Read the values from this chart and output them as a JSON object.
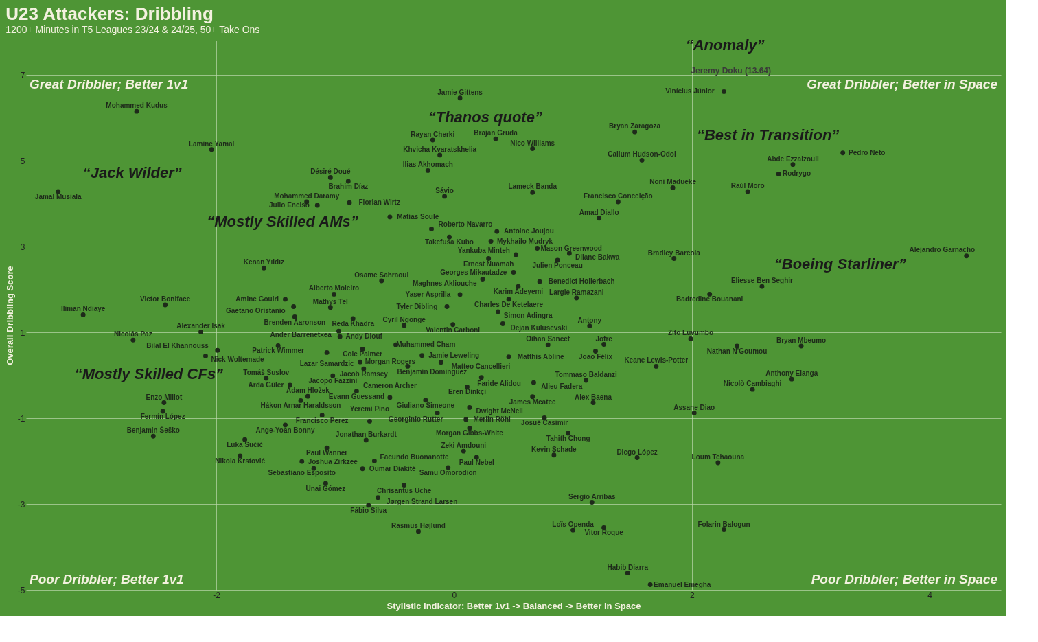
{
  "chart_data": {
    "type": "scatter",
    "title": "U23 Attackers: Dribbling",
    "subtitle": "1200+ Minutes in T5 Leagues 23/24 & 24/25, 50+ Take Ons",
    "xlabel": "Stylistic Indicator: Better 1v1 -> Balanced -> Better in Space",
    "ylabel": "Overall Dribbling Score",
    "xlim": [
      -3.6,
      4.6
    ],
    "xticks": [
      -2,
      0,
      2,
      4
    ],
    "ylim": [
      -5,
      7.8
    ],
    "yticks": [
      -5,
      -3,
      -1,
      1,
      3,
      5,
      7
    ],
    "grid": true,
    "marker": "circle",
    "series": [
      {
        "color": "#1e2a1a",
        "x": [
          2.27,
          0.05,
          -2.67,
          -2.04,
          -3.33,
          -1.04,
          -0.89,
          -1.24,
          -0.88,
          -1.15,
          -0.54,
          -0.18,
          0.35,
          0.66,
          -0.12,
          -0.22,
          -0.08,
          0.66,
          1.52,
          1.58,
          1.84,
          1.38,
          1.22,
          2.47,
          2.85,
          2.73,
          3.27,
          1.85,
          4.31,
          2.59,
          2.15,
          -0.19,
          0.36,
          -0.04,
          0.31,
          0.7,
          0.52,
          0.97,
          0.29,
          0.87,
          -1.6,
          -0.61,
          0.5,
          0.24,
          0.72,
          0.54,
          -1.01,
          -1.42,
          0.05,
          0.46,
          1.03,
          -1.35,
          -1.04,
          -0.06,
          0.37,
          -1.34,
          -0.85,
          -0.42,
          -0.01,
          0.41,
          1.14,
          -0.97,
          -0.96,
          -1.48,
          -3.12,
          -2.43,
          -2.13,
          -2.7,
          -1.99,
          -2.09,
          -0.49,
          -1.07,
          -0.77,
          -0.27,
          0.46,
          0.79,
          1.26,
          1.19,
          1.99,
          2.38,
          2.92,
          1.7,
          -0.79,
          -0.11,
          -0.76,
          -0.39,
          -1.58,
          -1.02,
          -1.38,
          0.23,
          0.67,
          1.11,
          0.11,
          -0.82,
          -1.29,
          -1.23,
          -0.54,
          -0.24,
          0.66,
          1.17,
          2.84,
          2.51,
          0.13,
          -0.14,
          2.02,
          -1.11,
          -0.71,
          0.1,
          0.76,
          -1.42,
          0.13,
          0.96,
          -2.53,
          -2.44,
          -2.45,
          -1.76,
          -0.74,
          -1.07,
          -1.8,
          -1.28,
          -0.67,
          -1.18,
          -0.77,
          0.08,
          0.19,
          0.84,
          -0.05,
          1.54,
          2.22,
          -1.08,
          -0.42,
          -0.64,
          -0.72,
          1.16,
          -0.3,
          1.0,
          1.26,
          2.27,
          1.46,
          1.65
        ],
        "values": [
          6.61,
          6.46,
          6.15,
          5.26,
          4.28,
          4.61,
          4.52,
          4.04,
          4.02,
          3.96,
          3.69,
          5.48,
          5.51,
          5.28,
          5.13,
          4.77,
          4.17,
          4.26,
          5.67,
          5.01,
          4.37,
          4.04,
          3.66,
          4.28,
          4.91,
          4.69,
          5.18,
          2.72,
          2.78,
          2.07,
          1.89,
          3.41,
          3.35,
          3.22,
          3.12,
          2.96,
          2.81,
          2.84,
          2.72,
          2.68,
          2.5,
          2.2,
          2.4,
          2.24,
          2.18,
          2.07,
          1.89,
          1.77,
          1.88,
          1.77,
          1.8,
          1.6,
          1.58,
          1.6,
          1.48,
          1.36,
          1.32,
          1.16,
          1.18,
          1.2,
          1.15,
          1.03,
          0.9,
          0.69,
          1.41,
          1.64,
          1.01,
          0.82,
          0.58,
          0.45,
          0.71,
          0.53,
          0.61,
          0.46,
          0.43,
          0.71,
          0.72,
          0.56,
          0.85,
          0.68,
          0.68,
          0.21,
          0.31,
          0.3,
          0.15,
          0.21,
          -0.07,
          -0.01,
          -0.23,
          -0.05,
          -0.17,
          -0.12,
          -0.27,
          -0.37,
          -0.59,
          -0.49,
          -0.52,
          -0.58,
          -0.5,
          -0.64,
          -0.09,
          -0.33,
          -0.75,
          -0.88,
          -0.88,
          -0.93,
          -1.07,
          -1.03,
          -0.99,
          -1.16,
          -1.23,
          -1.35,
          -1.42,
          -0.64,
          -0.84,
          -1.5,
          -1.51,
          -1.69,
          -1.88,
          -2.01,
          -2.0,
          -2.17,
          -2.18,
          -1.77,
          -1.91,
          -1.86,
          -2.15,
          -1.92,
          -2.04,
          -2.52,
          -2.56,
          -2.85,
          -3.03,
          -2.96,
          -3.64,
          -3.61,
          -3.55,
          -3.6,
          -4.61,
          -4.88
        ],
        "value_labels": [
          "Vinícius Júnior",
          "Jamie Gittens",
          "Mohammed Kudus",
          "Lamine Yamal",
          "Jamal Musiala",
          "Désiré Doué",
          "Brahim Díaz",
          "Mohammed Daramy",
          "Florian Wirtz",
          "Julio Enciso",
          "Matías Soulé",
          "Rayan Cherki",
          "Brajan Gruda",
          "Nico Williams",
          "Khvicha Kvaratskhelia",
          "Ilias Akhomach",
          "Sávio",
          "Lameck Banda",
          "Bryan Zaragoza",
          "Callum Hudson-Odoi",
          "Noni Madueke",
          "Francisco Conceição",
          "Amad Diallo",
          "Raúl Moro",
          "Abde Ezzalzouli",
          "Rodrygo",
          "Pedro Neto",
          "Bradley Barcola",
          "Alejandro Garnacho",
          "Eliesse Ben Seghir",
          "Badredine Bouanani",
          "Roberto Navarro",
          "Antoine Joujou",
          "Takefusa Kubo",
          "Mykhailo Mudryk",
          "Mason Greenwood",
          "Yankuba Minteh",
          "Dilane Bakwa",
          "Ernest Nuamah",
          "Julien Ponceau",
          "Kenan Yıldız",
          "Osame Sahraoui",
          "Georges Mikautadze",
          "Maghnes Akliouche",
          "Benedict Hollerbach",
          "Karim Adeyemi",
          "Alberto Moleiro",
          "Amine Gouiri",
          "Yaser Asprilla",
          "Charles De Ketelaere",
          "Largie Ramazani",
          "Gaetano Oristanio",
          "Mathys Tel",
          "Tyler Dibling",
          "Simon Adingra",
          "Brenden Aaronson",
          "Reda Khadra",
          "Cyril Ngonge",
          "Valentin Carboni",
          "Dejan Kulusevski",
          "Antony",
          "Ander Barrenetxea",
          "Andy Diouf",
          "Patrick Wimmer",
          "Iliman Ndiaye",
          "Victor Boniface",
          "Alexander Isak",
          "Nicolás Paz",
          "Bilal El Khannouss",
          "Nick Woltemade",
          "Muhammed Cham",
          "Lazar Samardzic",
          "Cole Palmer",
          "Jamie Leweling",
          "Matthis Abline",
          "Oihan Sancet",
          "Jofre",
          "João Félix",
          "Zito Luvumbo",
          "Nathan N'Goumou",
          "Bryan Mbeumo",
          "Keane Lewis-Potter",
          "Morgan Rogers",
          "Matteo Cancellieri",
          "Jacob Ramsey",
          "Benjamín Domínguez",
          "Tomáš Suslov",
          "Jacopo Fazzini",
          "Arda Güler",
          "Faride Alidou",
          "Alieu Fadera",
          "Tommaso Baldanzi",
          "Eren Dinkçi",
          "Evann Guessand",
          "Hákon Arnar Haraldsson",
          "Adam Hložek",
          "Cameron Archer",
          "Giuliano Simeone",
          "James Mcatee",
          "Alex Baena",
          "Anthony Elanga",
          "Nicolò Cambiaghi",
          "Dwight McNeil",
          "Georginio Rutter",
          "Assane Diao",
          "Francisco Perez",
          "Yeremi Pino",
          "Merlin Röhl",
          "Josué Casimir",
          "Ange-Yoan Bonny",
          "Morgan Gibbs-White",
          "Tahith Chong",
          "Benjamin Šeško",
          "Enzo Millot",
          "Fermín López",
          "Luka Sučić",
          "Jonathan Burkardt",
          "Paul Wanner",
          "Nikola Krstović",
          "Sebastiano Esposito",
          "Facundo Buonanotte",
          "Joshua Zirkzee",
          "Oumar Diakité",
          "Zeki Amdouni",
          "Paul Nebel",
          "Kevin Schade",
          "Samu Omorodion",
          "Diego López",
          "Loum Tchaouna",
          "Unai Gómez",
          "Chrisantus Uche",
          "Jørgen Strand Larsen",
          "Fábio Silva",
          "Sergio Arribas",
          "Rasmus Højlund",
          "Loïs Openda",
          "Vitor Roque",
          "Folarin Balogun",
          "Habib Diarra",
          "Emanuel Emegha"
        ]
      }
    ],
    "annotations": [
      "“Anomaly”",
      "Jeremy Doku (13.64)",
      "“Thanos quote”",
      "“Best in Transition”",
      "“Jack Wilder”",
      "“Mostly Skilled AMs”",
      "“Boeing Starliner”",
      "“Mostly Skilled CFs”",
      "Great Dribbler; Better 1v1",
      "Great Dribbler; Better in Space",
      "Poor Dribbler; Better 1v1",
      "Poor Dribbler; Better in Space"
    ]
  }
}
